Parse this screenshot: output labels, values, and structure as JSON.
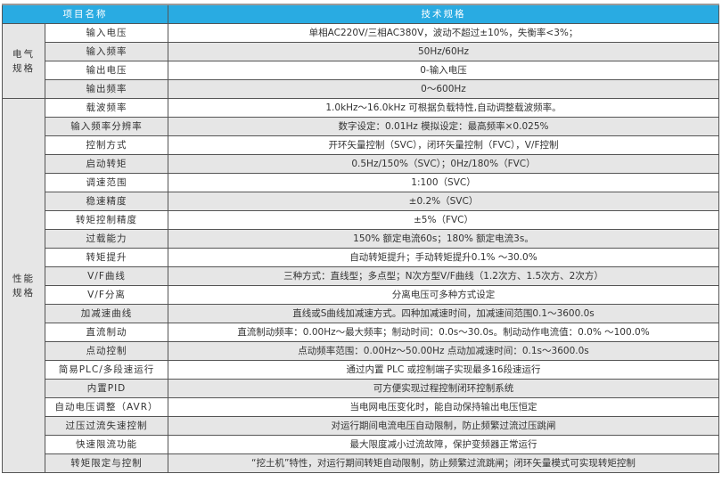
{
  "header": {
    "item_name": "项目名称",
    "spec": "技术规格"
  },
  "colors": {
    "header_bg": "#29abe2",
    "alt_row_bg": "#e6e6e6",
    "border": "#555555"
  },
  "sections": [
    {
      "label": "电气\n规格",
      "rows": [
        {
          "name": "输入电压",
          "value": "单相AC220V/三相AC380V，波动不超过±10%，失衡率<3%；"
        },
        {
          "name": "输入频率",
          "value": "50Hz/60Hz"
        },
        {
          "name": "输出电压",
          "value": "0-输入电压"
        },
        {
          "name": "输出频率",
          "value": "0～600Hz"
        }
      ]
    },
    {
      "label": "性能\n规格",
      "rows": [
        {
          "name": "载波频率",
          "value": "1.0kHz～16.0kHz 可根据负载特性,自动调整载波频率。"
        },
        {
          "name": "输入频率分辨率",
          "value": "数字设定：0.01Hz 模拟设定：最高频率×0.025%"
        },
        {
          "name": "控制方式",
          "value": "开环矢量控制（SVC），闭环矢量控制（FVC），V/F控制"
        },
        {
          "name": "启动转矩",
          "value": "0.5Hz/150%（SVC）；0Hz/180%（FVC）"
        },
        {
          "name": "调速范围",
          "value": "1:100（SVC）"
        },
        {
          "name": "稳速精度",
          "value": "±0.2%（SVC）"
        },
        {
          "name": "转矩控制精度",
          "value": "±5%（FVC）"
        },
        {
          "name": "过载能力",
          "value": "150% 额定电流60s；180% 额定电流3s。"
        },
        {
          "name": "转矩提升",
          "value": "自动转矩提升；手动转矩提升0.1% ～30.0%"
        },
        {
          "name": "V/F曲线",
          "value": "三种方式：直线型；多点型；N次方型V/F曲线（1.2次方、1.5次方、2次方）"
        },
        {
          "name": "V/F分离",
          "value": "分离电压可多种方式设定"
        },
        {
          "name": "加减速曲线",
          "value": "直线或S曲线加减速方式。四种加减速时间，加减速间范围0.1～3600.0s"
        },
        {
          "name": "直流制动",
          "value": "直流制动频率：0.00Hz～最大频率；制动时间：0.0s～30.0s。制动动作电流值：0.0% ～100.0%"
        },
        {
          "name": "点动控制",
          "value": "点动频率范围：0.00Hz～50.00Hz 点动加减速时间：0.1s～3600.0s"
        },
        {
          "name": "简易PLC/多段速运行",
          "value": "通过内置 PLC 或控制端子实现最多16段速运行"
        },
        {
          "name": "内置PID",
          "value": "可方便实现过程控制闭环控制系统"
        },
        {
          "name": "自动电压调整（AVR）",
          "value": "当电网电压变化时，能自动保持输出电压恒定"
        },
        {
          "name": "过压过流失速控制",
          "value": "对运行期间电流电压自动限制，防止频繁过流过压跳闸"
        },
        {
          "name": "快速限流功能",
          "value": "最大限度减小过流故障，保护变频器正常运行"
        },
        {
          "name": "转矩限定与控制",
          "value": "“挖土机”特性，对运行期间转矩自动限制，防止频繁过流跳闸；闭环矢量模式可实现转矩控制"
        }
      ]
    }
  ]
}
